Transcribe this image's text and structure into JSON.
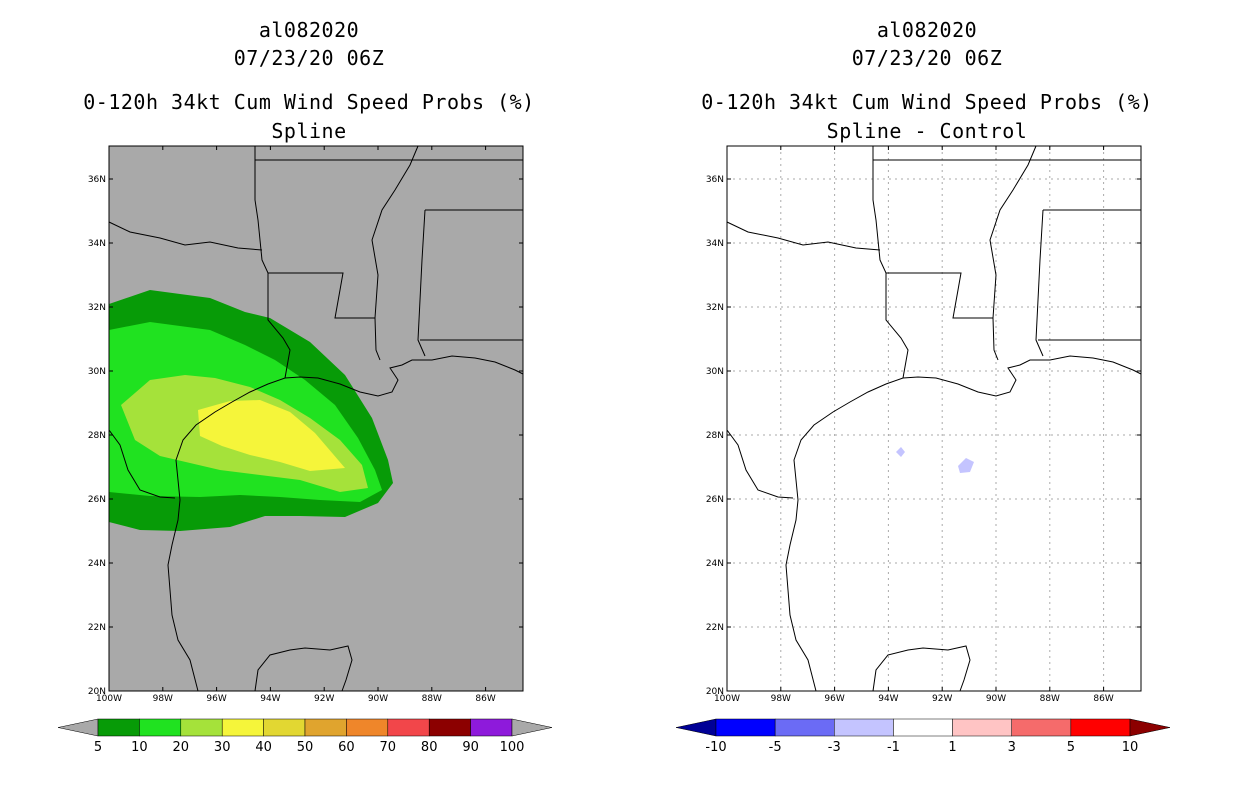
{
  "left": {
    "storm_id": "al082020",
    "datetime": "07/23/20 06Z",
    "product": "0-120h 34kt Cum Wind Speed Probs (%)",
    "subtitle": "Spline",
    "map_background": "#a9a9a9",
    "lat_labels": [
      "36N",
      "34N",
      "32N",
      "30N",
      "28N",
      "26N",
      "24N",
      "22N",
      "20N"
    ],
    "lon_labels": [
      "100W",
      "98W",
      "96W",
      "94W",
      "92W",
      "90W",
      "88W",
      "86W"
    ],
    "colorbar": {
      "colors": [
        "#a9a9a9",
        "#079b07",
        "#20e220",
        "#a5e23a",
        "#f5f53a",
        "#e2d732",
        "#e0a42e",
        "#ef862a",
        "#f2464a",
        "#8c0000",
        "#8e1adb",
        "#a9a9a9"
      ],
      "labels": [
        "5",
        "10",
        "20",
        "30",
        "40",
        "50",
        "60",
        "70",
        "80",
        "90",
        "100"
      ]
    },
    "contour_colors": {
      "c5": "#079b07",
      "c10": "#20e220",
      "c20": "#a5e23a",
      "c30": "#f5f53a"
    }
  },
  "right": {
    "storm_id": "al082020",
    "datetime": "07/23/20 06Z",
    "product": "0-120h 34kt Cum Wind Speed Probs (%)",
    "subtitle": "Spline - Control",
    "map_background": "#ffffff",
    "lat_labels": [
      "36N",
      "34N",
      "32N",
      "30N",
      "28N",
      "26N",
      "24N",
      "22N",
      "20N"
    ],
    "lon_labels": [
      "100W",
      "98W",
      "96W",
      "94W",
      "92W",
      "90W",
      "88W",
      "86W"
    ],
    "colorbar": {
      "colors": [
        "#000096",
        "#0000ff",
        "#6b6bf5",
        "#c4c4ff",
        "#ffffff",
        "#ffc4c4",
        "#f56b6b",
        "#ff0000",
        "#8c0000"
      ],
      "labels": [
        "-10",
        "-5",
        "-3",
        "-1",
        "1",
        "3",
        "5",
        "10"
      ]
    },
    "diff_color": "#c4c4ff"
  }
}
